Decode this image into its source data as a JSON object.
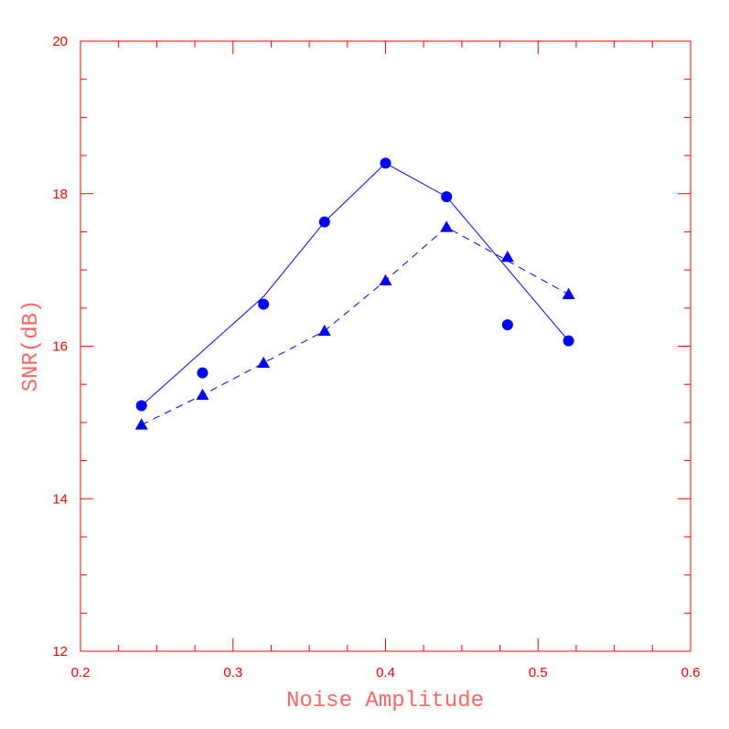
{
  "chart_data": {
    "type": "scatter",
    "title": "",
    "xlabel": "Noise Amplitude",
    "ylabel": "SNR(dB)",
    "xlim": [
      0.2,
      0.6
    ],
    "ylim": [
      12,
      20
    ],
    "x_ticks": [
      "0.2",
      "0.3",
      "0.4",
      "0.5",
      "0.6"
    ],
    "y_ticks": [
      "12",
      "14",
      "16",
      "18",
      "20"
    ],
    "grid": false,
    "legend": "none",
    "axis_color": "#ff0000",
    "series": [
      {
        "marker": "circle",
        "points": [
          [
            0.24,
            15.22
          ],
          [
            0.28,
            15.65
          ],
          [
            0.32,
            16.55
          ],
          [
            0.36,
            17.63
          ],
          [
            0.4,
            18.4
          ],
          [
            0.44,
            17.96
          ],
          [
            0.48,
            16.28
          ],
          [
            0.52,
            16.07
          ]
        ],
        "fit_line": {
          "style": "solid",
          "points": [
            [
              0.24,
              15.22
            ],
            [
              0.32,
              16.65
            ],
            [
              0.36,
              17.63
            ],
            [
              0.4,
              18.4
            ],
            [
              0.44,
              17.96
            ],
            [
              0.52,
              16.07
            ]
          ]
        },
        "color": "#0000ff"
      },
      {
        "marker": "triangle",
        "points": [
          [
            0.24,
            14.97
          ],
          [
            0.28,
            15.36
          ],
          [
            0.32,
            15.78
          ],
          [
            0.36,
            16.2
          ],
          [
            0.4,
            16.86
          ],
          [
            0.44,
            17.56
          ],
          [
            0.48,
            17.17
          ],
          [
            0.52,
            16.68
          ]
        ],
        "fit_line": {
          "style": "dashed",
          "points": [
            [
              0.24,
              14.97
            ],
            [
              0.28,
              15.36
            ],
            [
              0.32,
              15.78
            ],
            [
              0.36,
              16.2
            ],
            [
              0.4,
              16.86
            ],
            [
              0.44,
              17.56
            ],
            [
              0.52,
              16.68
            ]
          ]
        },
        "color": "#0000ff"
      }
    ]
  }
}
